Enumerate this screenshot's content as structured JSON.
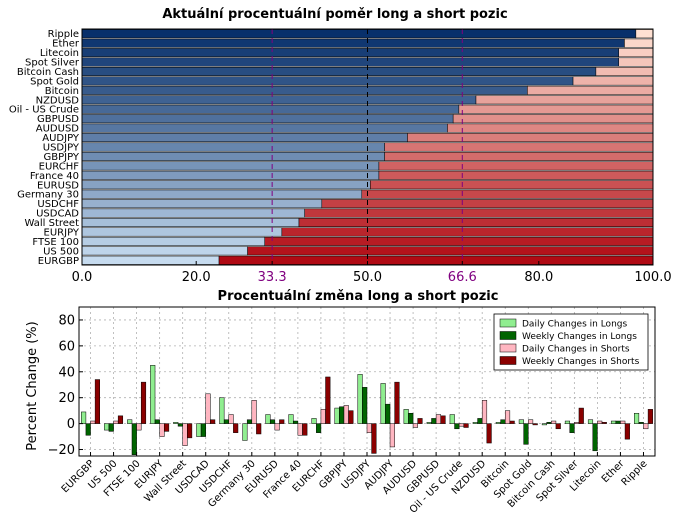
{
  "chart_data": [
    {
      "type": "bar",
      "orientation": "horizontal",
      "stacked": true,
      "title": "Aktuální procentuální poměr long a short pozic",
      "categories": [
        "Ripple",
        "Ether",
        "Litecoin",
        "Spot Silver",
        "Bitcoin Cash",
        "Spot Gold",
        "Bitcoin",
        "NZDUSD",
        "Oil - US Crude",
        "GBPUSD",
        "AUDUSD",
        "AUDJPY",
        "USDJPY",
        "GBPJPY",
        "EURCHF",
        "France 40",
        "EURUSD",
        "Germany 30",
        "USDCHF",
        "USDCAD",
        "Wall Street",
        "EURJPY",
        "FTSE 100",
        "US 500",
        "EURGBP"
      ],
      "series": [
        {
          "values": [
            97,
            95,
            94,
            94,
            90,
            86,
            78,
            69,
            66,
            65,
            64,
            57,
            53,
            53,
            52,
            52,
            50.5,
            49,
            42,
            39,
            38,
            35,
            32,
            29,
            24
          ]
        },
        {
          "values": [
            3,
            5,
            6,
            6,
            10,
            14,
            22,
            31,
            34,
            35,
            36,
            43,
            47,
            47,
            48,
            48,
            49.5,
            51,
            58,
            61,
            62,
            65,
            68,
            71,
            76
          ]
        }
      ],
      "xlim": [
        0,
        100
      ],
      "xticks": [
        "0.0",
        "20.0",
        "33.3",
        "50.0",
        "66.6",
        "80.0",
        "100.0"
      ],
      "reference_lines": [
        33.3,
        50.0,
        66.6
      ],
      "colors": {
        "long_dark": "#08306b",
        "long_light": "#c6dbef",
        "short_light": "#fee0d2",
        "short_dark": "#b00a14",
        "reference_purple": "#800080",
        "reference_black": "#000000"
      }
    },
    {
      "type": "bar",
      "title": "Procentuální změna long a short pozic",
      "ylabel": "Percent Change (%)",
      "categories": [
        "EURGBP",
        "US 500",
        "FTSE 100",
        "EURJPY",
        "Wall Street",
        "USDCAD",
        "USDCHF",
        "Germany 30",
        "EURUSD",
        "France 40",
        "EURCHF",
        "GBPJPY",
        "USDJPY",
        "AUDJPY",
        "AUDUSD",
        "GBPUSD",
        "Oil - US Crude",
        "NZDUSD",
        "Bitcoin",
        "Spot Gold",
        "Bitcoin Cash",
        "Spot Silver",
        "Litecoin",
        "Ether",
        "Ripple"
      ],
      "series": [
        {
          "name": "Daily Changes in Longs",
          "color": "#90ee90",
          "values": [
            9,
            -5,
            3,
            45,
            1,
            -10,
            20,
            -13,
            7,
            7,
            4,
            12,
            38,
            31,
            11,
            1,
            7,
            1,
            1,
            3,
            -1,
            2,
            3,
            2,
            8
          ]
        },
        {
          "name": "Weekly Changes in Longs",
          "color": "#006400",
          "values": [
            -9,
            -6,
            -24,
            3,
            -2,
            -10,
            3,
            3,
            3,
            2,
            -7,
            13,
            28,
            15,
            8,
            4,
            -4,
            4,
            3,
            -16,
            1,
            -7,
            -21,
            2,
            1
          ]
        },
        {
          "name": "Daily Changes in Shorts",
          "color": "#ffb6c1",
          "values": [
            2,
            2,
            -5,
            -10,
            -17,
            23,
            7,
            18,
            -5,
            -9,
            11,
            14,
            -7,
            -18,
            -3,
            7,
            -2,
            18,
            10,
            3,
            2,
            1,
            2,
            2,
            -4
          ]
        },
        {
          "name": "Weekly Changes in Shorts",
          "color": "#8b0000",
          "values": [
            34,
            6,
            32,
            -6,
            -11,
            3,
            -7,
            -8,
            3,
            -9,
            36,
            10,
            -23,
            32,
            4,
            6,
            -3,
            -15,
            2,
            -1,
            -4,
            12,
            1,
            -12,
            11
          ]
        }
      ],
      "ylim": [
        -25,
        90
      ],
      "yticks": [
        "−20",
        "0",
        "20",
        "40",
        "60",
        "80"
      ],
      "grid": true,
      "legend_placement": "top-right"
    }
  ]
}
